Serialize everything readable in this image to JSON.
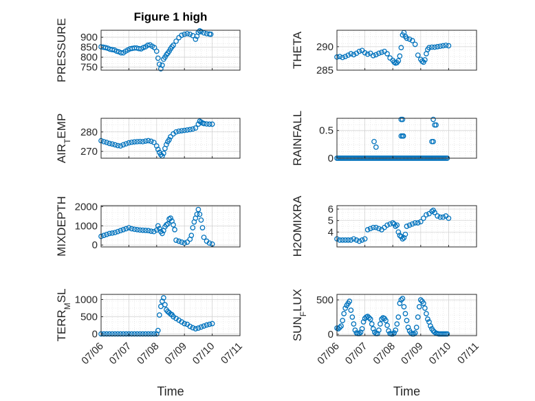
{
  "figure_title": "Figure 1 high",
  "x_axis_label": "Time",
  "colors": {
    "marker": "#0072BD",
    "axis": "#262626",
    "grid": "#d9d9d9"
  },
  "chart_data": [
    {
      "type": "scatter",
      "title": "Figure 1 high",
      "ylabel": "PRESSURE",
      "ylim": [
        735,
        935
      ],
      "yticks": [
        750,
        800,
        850,
        900
      ],
      "xlim": [
        0,
        5
      ],
      "xtick_labels": [],
      "grid": true,
      "x": [
        0,
        0.08,
        0.16,
        0.24,
        0.32,
        0.4,
        0.48,
        0.56,
        0.64,
        0.72,
        0.8,
        0.88,
        0.96,
        1.04,
        1.12,
        1.2,
        1.28,
        1.36,
        1.44,
        1.52,
        1.6,
        1.68,
        1.76,
        1.84,
        1.92,
        2.0,
        2.05,
        2.1,
        2.15,
        2.2,
        2.25,
        2.3,
        2.35,
        2.4,
        2.45,
        2.5,
        2.55,
        2.6,
        2.7,
        2.8,
        2.9,
        3.0,
        3.1,
        3.2,
        3.3,
        3.4,
        3.45,
        3.5,
        3.55,
        3.6,
        3.7,
        3.8,
        3.9,
        3.95
      ],
      "y": [
        852,
        850,
        848,
        845,
        840,
        838,
        836,
        830,
        827,
        822,
        822,
        830,
        836,
        842,
        844,
        846,
        846,
        843,
        842,
        848,
        852,
        860,
        862,
        855,
        848,
        830,
        795,
        765,
        742,
        760,
        790,
        800,
        812,
        820,
        830,
        842,
        852,
        860,
        880,
        898,
        910,
        915,
        918,
        915,
        908,
        890,
        905,
        925,
        932,
        928,
        922,
        918,
        916,
        915
      ]
    },
    {
      "type": "scatter",
      "ylabel": "THETA",
      "ylim": [
        285,
        293.5
      ],
      "yticks": [
        285,
        290
      ],
      "xlim": [
        0,
        5
      ],
      "xtick_labels": [],
      "grid": true,
      "x": [
        0,
        0.1,
        0.2,
        0.3,
        0.4,
        0.5,
        0.6,
        0.7,
        0.8,
        0.9,
        1.0,
        1.1,
        1.2,
        1.3,
        1.4,
        1.5,
        1.6,
        1.7,
        1.8,
        1.9,
        2.0,
        2.05,
        2.1,
        2.15,
        2.2,
        2.25,
        2.3,
        2.35,
        2.4,
        2.45,
        2.5,
        2.6,
        2.7,
        2.8,
        2.9,
        3.0,
        3.05,
        3.1,
        3.15,
        3.2,
        3.25,
        3.3,
        3.4,
        3.5,
        3.6,
        3.7,
        3.8,
        3.9,
        4.0
      ],
      "y": [
        287.8,
        287.9,
        287.7,
        287.9,
        288.2,
        288.5,
        288.3,
        288.6,
        289.0,
        289.2,
        288.7,
        288.4,
        288.6,
        288.1,
        288.3,
        288.6,
        288.8,
        289.0,
        288.5,
        287.6,
        287.1,
        286.7,
        286.5,
        286.6,
        287.0,
        288.0,
        289.8,
        292.5,
        293.0,
        292.2,
        291.8,
        291.6,
        291.3,
        290.5,
        288.2,
        287.3,
        286.9,
        286.7,
        287.2,
        288.5,
        289.4,
        289.8,
        289.9,
        289.9,
        290.0,
        290.1,
        290.2,
        290.3,
        290.2
      ]
    },
    {
      "type": "scatter",
      "ylabel": "AIR_TEMP",
      "ylim": [
        266.5,
        287
      ],
      "yticks": [
        270,
        280
      ],
      "xlim": [
        0,
        5
      ],
      "xtick_labels": [],
      "grid": true,
      "x": [
        0,
        0.1,
        0.2,
        0.3,
        0.4,
        0.5,
        0.6,
        0.7,
        0.8,
        0.9,
        1.0,
        1.1,
        1.2,
        1.3,
        1.4,
        1.5,
        1.6,
        1.7,
        1.8,
        1.9,
        2.0,
        2.05,
        2.1,
        2.15,
        2.2,
        2.25,
        2.3,
        2.35,
        2.4,
        2.45,
        2.5,
        2.6,
        2.7,
        2.8,
        2.9,
        3.0,
        3.1,
        3.2,
        3.3,
        3.4,
        3.5,
        3.55,
        3.6,
        3.65,
        3.7,
        3.8,
        3.9,
        4.0
      ],
      "y": [
        275.5,
        275.0,
        274.6,
        274.1,
        273.8,
        273.4,
        273.0,
        272.8,
        273.4,
        273.9,
        274.4,
        274.7,
        274.9,
        275.0,
        275.1,
        275.0,
        275.3,
        275.5,
        275.2,
        274.6,
        272.8,
        271.0,
        269.5,
        268.3,
        267.6,
        269.0,
        271.5,
        273.5,
        275.0,
        276.0,
        277.5,
        279.0,
        280.0,
        280.4,
        280.6,
        280.8,
        281.0,
        281.2,
        281.5,
        282.0,
        284.0,
        285.5,
        285.0,
        284.6,
        284.3,
        284.1,
        284.0,
        284.0
      ]
    },
    {
      "type": "scatter",
      "ylabel": "RAINFALL",
      "ylim": [
        0,
        0.72
      ],
      "yticks": [
        0,
        0.5
      ],
      "xlim": [
        0,
        5
      ],
      "xtick_labels": [],
      "grid": true,
      "x": [
        0,
        0.05,
        0.1,
        0.15,
        0.2,
        0.25,
        0.3,
        0.35,
        0.4,
        0.45,
        0.5,
        0.55,
        0.6,
        0.65,
        0.7,
        0.75,
        0.8,
        0.85,
        0.9,
        0.95,
        1.0,
        1.05,
        1.1,
        1.15,
        1.2,
        1.25,
        1.3,
        1.35,
        1.4,
        1.45,
        1.5,
        1.55,
        1.6,
        1.65,
        1.7,
        1.75,
        1.8,
        1.85,
        1.9,
        1.95,
        2.0,
        2.05,
        2.1,
        2.15,
        2.2,
        2.25,
        2.3,
        2.35,
        2.4,
        2.45,
        2.5,
        2.55,
        2.6,
        2.65,
        2.7,
        2.75,
        2.8,
        2.85,
        2.9,
        2.95,
        3.0,
        3.05,
        3.1,
        3.15,
        3.2,
        3.25,
        3.3,
        3.35,
        3.4,
        3.45,
        3.5,
        3.55,
        3.6,
        3.65,
        3.7,
        3.75,
        3.8,
        3.85,
        3.9,
        3.95,
        1.33,
        1.4,
        2.3,
        2.35,
        2.3,
        2.35,
        2.38,
        3.4,
        3.45,
        3.45,
        3.5,
        3.55
      ],
      "y": [
        0,
        0,
        0,
        0,
        0,
        0,
        0,
        0,
        0,
        0,
        0,
        0,
        0,
        0,
        0,
        0,
        0,
        0,
        0,
        0,
        0,
        0,
        0,
        0,
        0,
        0,
        0,
        0,
        0,
        0,
        0,
        0,
        0,
        0,
        0,
        0,
        0,
        0,
        0,
        0,
        0,
        0,
        0,
        0,
        0,
        0,
        0,
        0,
        0,
        0,
        0,
        0,
        0,
        0,
        0,
        0,
        0,
        0,
        0,
        0,
        0,
        0,
        0,
        0,
        0,
        0,
        0,
        0,
        0,
        0,
        0,
        0,
        0,
        0,
        0,
        0,
        0,
        0,
        0,
        0,
        0.3,
        0.2,
        0.7,
        0.7,
        0.4,
        0.4,
        0.4,
        0.3,
        0.3,
        0.7,
        0.6,
        0.6
      ]
    },
    {
      "type": "scatter",
      "ylabel": "MIXDEPTH",
      "ylim": [
        -100,
        2050
      ],
      "yticks": [
        0,
        1000,
        2000
      ],
      "xlim": [
        0,
        5
      ],
      "xtick_labels": [],
      "grid": true,
      "x": [
        0,
        0.1,
        0.2,
        0.3,
        0.4,
        0.5,
        0.6,
        0.7,
        0.8,
        0.9,
        1.0,
        1.1,
        1.2,
        1.3,
        1.4,
        1.5,
        1.6,
        1.7,
        1.8,
        1.9,
        2.0,
        2.05,
        2.1,
        2.15,
        2.2,
        2.25,
        2.3,
        2.35,
        2.4,
        2.45,
        2.5,
        2.55,
        2.6,
        2.65,
        2.7,
        2.8,
        2.9,
        3.0,
        3.1,
        3.2,
        3.25,
        3.3,
        3.35,
        3.4,
        3.45,
        3.5,
        3.55,
        3.6,
        3.65,
        3.7,
        3.8,
        3.9,
        4.0
      ],
      "y": [
        450,
        500,
        550,
        600,
        620,
        650,
        700,
        750,
        800,
        850,
        900,
        850,
        820,
        800,
        780,
        770,
        760,
        750,
        720,
        700,
        780,
        1000,
        850,
        700,
        600,
        750,
        950,
        1050,
        1100,
        1350,
        1400,
        1250,
        1050,
        800,
        250,
        200,
        150,
        100,
        150,
        300,
        500,
        900,
        1200,
        1400,
        1600,
        1850,
        1600,
        1300,
        900,
        400,
        200,
        100,
        50
      ]
    },
    {
      "type": "scatter",
      "ylabel": "H2OMIXRA",
      "ylim": [
        2.7,
        6.3
      ],
      "yticks": [
        4,
        5,
        6
      ],
      "xlim": [
        0,
        5
      ],
      "xtick_labels": [],
      "grid": true,
      "x": [
        0,
        0.1,
        0.2,
        0.3,
        0.4,
        0.5,
        0.6,
        0.7,
        0.8,
        0.9,
        1.0,
        1.1,
        1.2,
        1.3,
        1.4,
        1.5,
        1.6,
        1.7,
        1.8,
        1.9,
        2.0,
        2.05,
        2.1,
        2.15,
        2.2,
        2.25,
        2.3,
        2.35,
        2.4,
        2.45,
        2.5,
        2.6,
        2.7,
        2.8,
        2.9,
        3.0,
        3.1,
        3.2,
        3.3,
        3.4,
        3.45,
        3.5,
        3.6,
        3.7,
        3.8,
        3.9,
        4.0
      ],
      "y": [
        3.4,
        3.3,
        3.3,
        3.3,
        3.3,
        3.3,
        3.4,
        3.3,
        3.2,
        3.3,
        3.4,
        4.2,
        4.3,
        4.4,
        4.4,
        4.3,
        4.2,
        4.4,
        4.6,
        4.7,
        4.8,
        4.7,
        4.5,
        4.6,
        4.0,
        3.7,
        3.6,
        3.4,
        3.5,
        3.8,
        4.5,
        4.6,
        4.7,
        4.8,
        4.8,
        4.9,
        5.2,
        5.5,
        5.6,
        5.8,
        5.9,
        5.7,
        5.4,
        5.3,
        5.3,
        5.4,
        5.2
      ]
    },
    {
      "type": "scatter",
      "ylabel": "TERR_MSL",
      "xlabel": "Time",
      "ylim": [
        -50,
        1150
      ],
      "yticks": [
        0,
        500,
        1000
      ],
      "xlim": [
        0,
        5
      ],
      "xtick_labels": [
        "07/06",
        "07/07",
        "07/08",
        "07/09",
        "07/10",
        "07/11"
      ],
      "grid": true,
      "x": [
        0,
        0.1,
        0.2,
        0.3,
        0.4,
        0.5,
        0.6,
        0.7,
        0.8,
        0.9,
        1.0,
        1.1,
        1.2,
        1.3,
        1.4,
        1.5,
        1.6,
        1.7,
        1.8,
        1.9,
        2.0,
        2.05,
        2.1,
        2.15,
        2.2,
        2.25,
        2.3,
        2.35,
        2.4,
        2.45,
        2.5,
        2.55,
        2.6,
        2.7,
        2.8,
        2.9,
        3.0,
        3.1,
        3.2,
        3.3,
        3.4,
        3.5,
        3.6,
        3.7,
        3.8,
        3.9,
        4.0
      ],
      "y": [
        0,
        0,
        0,
        0,
        0,
        0,
        0,
        0,
        0,
        0,
        0,
        0,
        0,
        0,
        0,
        0,
        0,
        0,
        0,
        0,
        0,
        100,
        550,
        800,
        950,
        1050,
        850,
        700,
        650,
        620,
        580,
        560,
        500,
        450,
        400,
        350,
        300,
        280,
        220,
        180,
        150,
        170,
        200,
        230,
        260,
        280,
        300
      ]
    },
    {
      "type": "scatter",
      "ylabel": "SUN_FLUX",
      "xlabel": "Time",
      "ylim": [
        -20,
        580
      ],
      "yticks": [
        0,
        500
      ],
      "xlim": [
        0,
        5
      ],
      "xtick_labels": [
        "07/06",
        "07/07",
        "07/08",
        "07/09",
        "07/10",
        "07/11"
      ],
      "grid": true,
      "x": [
        0,
        0.05,
        0.1,
        0.15,
        0.2,
        0.25,
        0.3,
        0.35,
        0.4,
        0.45,
        0.5,
        0.55,
        0.6,
        0.65,
        0.7,
        0.75,
        0.8,
        0.85,
        0.9,
        0.95,
        1.0,
        1.05,
        1.1,
        1.15,
        1.2,
        1.25,
        1.3,
        1.35,
        1.4,
        1.45,
        1.5,
        1.55,
        1.6,
        1.65,
        1.7,
        1.75,
        1.8,
        1.85,
        1.9,
        1.95,
        2.0,
        2.05,
        2.1,
        2.15,
        2.2,
        2.25,
        2.3,
        2.35,
        2.4,
        2.45,
        2.5,
        2.55,
        2.6,
        2.65,
        2.7,
        2.75,
        2.8,
        2.85,
        2.9,
        2.95,
        3.0,
        3.05,
        3.1,
        3.15,
        3.2,
        3.25,
        3.3,
        3.35,
        3.4,
        3.45,
        3.5,
        3.55,
        3.6,
        3.65,
        3.7,
        3.75,
        3.8,
        3.85,
        3.9,
        3.95
      ],
      "y": [
        90,
        80,
        100,
        120,
        200,
        300,
        380,
        420,
        450,
        480,
        350,
        250,
        150,
        60,
        20,
        10,
        10,
        30,
        80,
        180,
        230,
        250,
        260,
        240,
        220,
        150,
        80,
        30,
        10,
        10,
        60,
        150,
        220,
        240,
        230,
        200,
        130,
        50,
        10,
        5,
        5,
        20,
        60,
        150,
        250,
        450,
        500,
        520,
        400,
        300,
        200,
        100,
        50,
        20,
        5,
        5,
        20,
        100,
        250,
        400,
        500,
        480,
        450,
        380,
        300,
        220,
        180,
        120,
        80,
        50,
        30,
        15,
        10,
        5,
        5,
        5,
        5,
        5,
        5,
        5
      ]
    }
  ]
}
